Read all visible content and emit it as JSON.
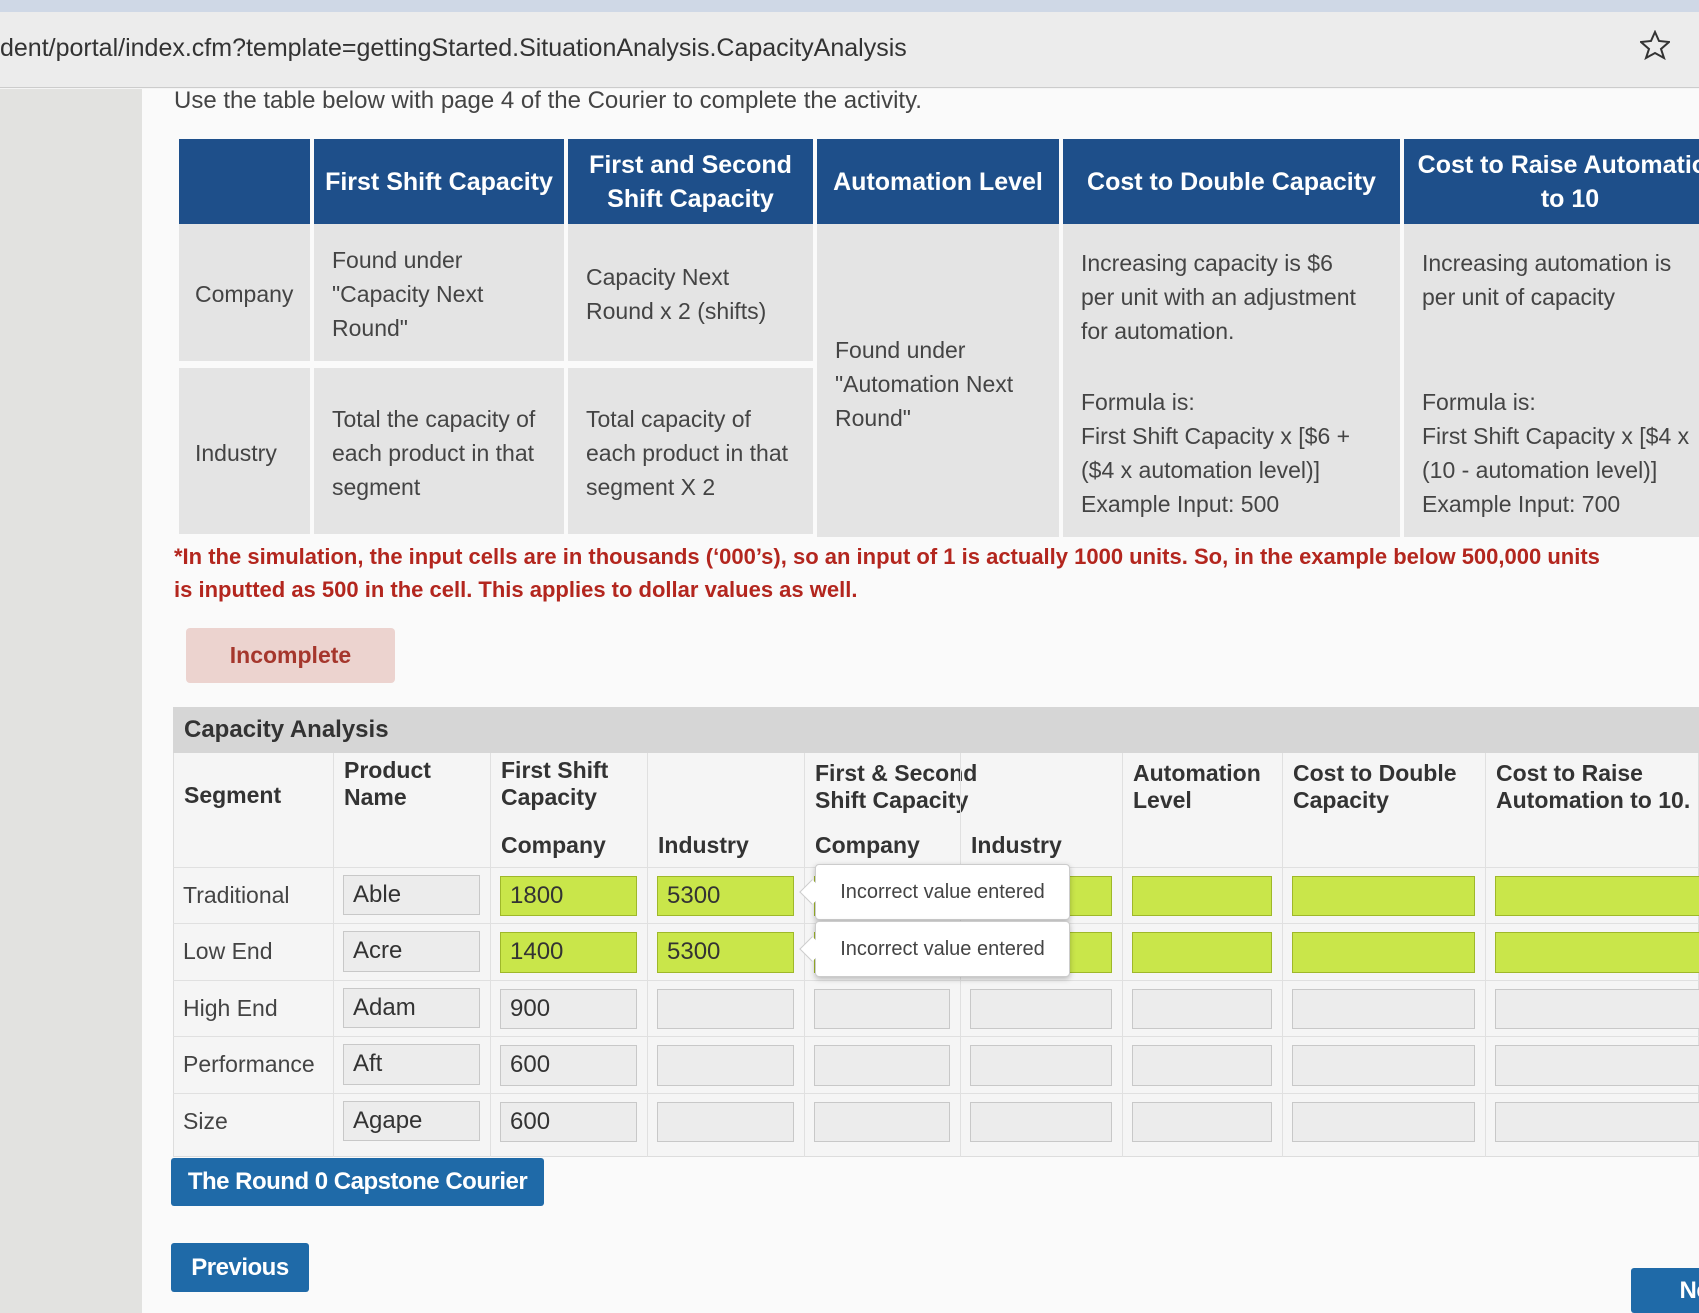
{
  "url": "dent/portal/index.cfm?template=gettingStarted.SituationAnalysis.CapacityAnalysis",
  "instruction": "Use the table below with page 4 of the Courier to complete the activity.",
  "info_table": {
    "headers": [
      [
        "First Shift Capacity"
      ],
      [
        "First and Second",
        "Shift Capacity"
      ],
      [
        "Automation Level"
      ],
      [
        "Cost to Double Capacity"
      ],
      [
        "Cost to Raise Automation",
        "to 10"
      ]
    ],
    "row_labels": [
      "Company",
      "Industry"
    ],
    "first_shift": [
      [
        "Found under",
        "\"Capacity Next",
        "Round\""
      ],
      [
        "Total the capacity of",
        "each product in that",
        "segment"
      ]
    ],
    "first_second_shift": [
      [
        "Capacity Next",
        "Round x 2 (shifts)"
      ],
      [
        "Total capacity of",
        "each product in that",
        "segment X 2"
      ]
    ],
    "automation_level": [
      "Found under",
      "\"Automation Next",
      "Round\""
    ],
    "cost_to_double": {
      "description": [
        "Increasing capacity is $6",
        "per unit with an adjustment",
        "for automation."
      ],
      "formula": [
        "Formula is:",
        "First Shift Capacity x [$6 +",
        "($4 x automation level)]",
        "Example Input: 500"
      ]
    },
    "cost_to_raise": {
      "description": [
        "Increasing automation is",
        "per unit of capacity"
      ],
      "formula": [
        "Formula is:",
        "First Shift Capacity x [$4 x",
        "(10 - automation level)]",
        "Example Input: 700"
      ]
    }
  },
  "note": [
    "*In the simulation, the input cells are in thousands (‘000’s), so an input of 1 is actually 1000 units. So, in the example below 500,000 units",
    "is inputted as 500 in the cell. This applies to dollar values as well."
  ],
  "status": "Incomplete",
  "capacity_analysis": {
    "title": "Capacity Analysis",
    "headers": {
      "segment": "Segment",
      "product": [
        "Product",
        "Name"
      ],
      "first_shift": [
        "First Shift",
        "Capacity"
      ],
      "first_second_shift": [
        "First & Second",
        "Shift Capacity"
      ],
      "automation": [
        "Automation",
        "Level"
      ],
      "cost_double": [
        "Cost to Double",
        "Capacity"
      ],
      "cost_raise": [
        "Cost to Raise",
        "Automation to 10."
      ]
    },
    "subheaders": [
      "Company",
      "Industry",
      "Company",
      "Industry"
    ],
    "rows": [
      {
        "segment": "Traditional",
        "product": "Able",
        "first_shift_company": 1800,
        "first_shift_industry": 5300,
        "highlighted": true
      },
      {
        "segment": "Low End",
        "product": "Acre",
        "first_shift_company": 1400,
        "first_shift_industry": 5300,
        "highlighted": true
      },
      {
        "segment": "High End",
        "product": "Adam",
        "first_shift_company": 900,
        "highlighted": false
      },
      {
        "segment": "Performance",
        "product": "Aft",
        "first_shift_company": 600,
        "highlighted": false
      },
      {
        "segment": "Size",
        "product": "Agape",
        "first_shift_company": 600,
        "highlighted": false
      }
    ],
    "tooltips": [
      "Incorrect value entered",
      "Incorrect value entered"
    ]
  },
  "buttons": {
    "courier": "The Round 0 Capstone Courier",
    "previous": "Previous",
    "next": "Next"
  }
}
